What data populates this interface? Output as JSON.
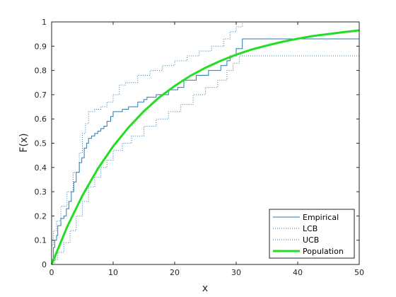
{
  "chart_data": {
    "type": "line",
    "title": "",
    "xlabel": "x",
    "ylabel": "F(x)",
    "xlim": [
      0,
      50
    ],
    "ylim": [
      0,
      1
    ],
    "x_ticks": [
      "0",
      "10",
      "20",
      "30",
      "40",
      "50"
    ],
    "y_ticks": [
      "0",
      "0.1",
      "0.2",
      "0.3",
      "0.4",
      "0.5",
      "0.6",
      "0.7",
      "0.8",
      "0.9",
      "1"
    ],
    "grid": false,
    "legend_position": "bottom-right",
    "colors": {
      "empirical": "#2a7ab0",
      "bounds": "#2a7ab0",
      "population": "#22dd22",
      "axes": "#262626"
    },
    "series": [
      {
        "name": "Empirical",
        "style": "step",
        "x": [
          0,
          0.3,
          0.5,
          0.8,
          1.0,
          1.5,
          2.0,
          2.4,
          2.8,
          3.2,
          3.6,
          4.0,
          4.5,
          4.9,
          5.3,
          5.7,
          6.0,
          6.5,
          7.0,
          7.5,
          8.0,
          8.5,
          9.0,
          9.6,
          10.0,
          11.5,
          12.5,
          14.0,
          15.0,
          15.5,
          17.0,
          19.0,
          20.5,
          21.5,
          23.5,
          25.5,
          27.5,
          28.5,
          29.0,
          30.0,
          31.0,
          50
        ],
        "y": [
          0.02,
          0.07,
          0.1,
          0.12,
          0.16,
          0.19,
          0.2,
          0.23,
          0.26,
          0.3,
          0.34,
          0.38,
          0.42,
          0.44,
          0.48,
          0.5,
          0.52,
          0.53,
          0.54,
          0.55,
          0.56,
          0.57,
          0.59,
          0.61,
          0.63,
          0.64,
          0.65,
          0.67,
          0.68,
          0.69,
          0.7,
          0.72,
          0.73,
          0.76,
          0.78,
          0.8,
          0.82,
          0.84,
          0.86,
          0.89,
          0.93,
          0.93
        ]
      },
      {
        "name": "LCB",
        "style": "dotted-step",
        "x": [
          0,
          0.5,
          1.0,
          2.0,
          3.0,
          4.0,
          5.0,
          6.0,
          7.0,
          8.0,
          9.0,
          10.0,
          11.5,
          13.0,
          15.0,
          17.0,
          19.0,
          21.0,
          23.0,
          25.0,
          27.0,
          28.5,
          29.5,
          30.5,
          31.0,
          50
        ],
        "y": [
          0.0,
          0.02,
          0.05,
          0.09,
          0.14,
          0.2,
          0.26,
          0.32,
          0.36,
          0.4,
          0.43,
          0.47,
          0.5,
          0.53,
          0.57,
          0.6,
          0.63,
          0.66,
          0.7,
          0.73,
          0.76,
          0.8,
          0.83,
          0.86,
          0.86,
          0.86
        ]
      },
      {
        "name": "UCB",
        "style": "dotted-step",
        "x": [
          0,
          0.3,
          0.8,
          1.5,
          2.5,
          3.5,
          4.5,
          5.0,
          5.5,
          6.0,
          7.0,
          8.0,
          9.0,
          10.0,
          11.0,
          12.0,
          14.0,
          16.0,
          18.0,
          20.0,
          22.0,
          24.0,
          26.0,
          28.0,
          29.0,
          30.0,
          31.0,
          50
        ],
        "y": [
          0.08,
          0.14,
          0.18,
          0.24,
          0.3,
          0.38,
          0.46,
          0.54,
          0.58,
          0.63,
          0.64,
          0.65,
          0.67,
          0.7,
          0.74,
          0.75,
          0.78,
          0.8,
          0.82,
          0.84,
          0.86,
          0.88,
          0.9,
          0.93,
          0.96,
          0.98,
          1.0,
          1.0
        ]
      },
      {
        "name": "Population",
        "style": "smooth",
        "x": [
          0,
          2.5,
          5,
          7.5,
          10,
          12.5,
          15,
          17.5,
          20,
          22.5,
          25,
          27.5,
          30,
          32.5,
          35,
          37.5,
          40,
          42.5,
          45,
          47.5,
          50
        ],
        "y": [
          0,
          0.154,
          0.284,
          0.394,
          0.487,
          0.565,
          0.632,
          0.689,
          0.736,
          0.777,
          0.811,
          0.84,
          0.865,
          0.886,
          0.903,
          0.918,
          0.931,
          0.942,
          0.95,
          0.958,
          0.965
        ]
      }
    ]
  }
}
